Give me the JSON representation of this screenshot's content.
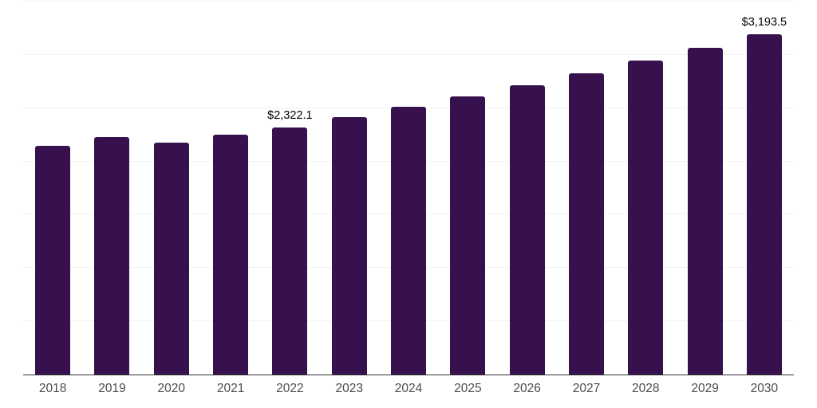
{
  "chart_data": {
    "type": "bar",
    "title": "",
    "xlabel": "",
    "ylabel": "",
    "categories": [
      "2018",
      "2019",
      "2020",
      "2021",
      "2022",
      "2023",
      "2024",
      "2025",
      "2026",
      "2027",
      "2028",
      "2029",
      "2030"
    ],
    "values": [
      2146,
      2232,
      2180,
      2248,
      2322.1,
      2412,
      2510,
      2612,
      2718,
      2828,
      2943,
      3065,
      3193.5
    ],
    "data_labels": {
      "2022": "$2,322.1",
      "2030": "$3,193.5"
    },
    "ylim": [
      0,
      3500
    ],
    "grid_step": 500,
    "grid_on": true,
    "legend": "none",
    "colors": {
      "bar": "#36114D",
      "gridline": "#F2F2F2",
      "axis_line": "#333333",
      "tick_label": "#4D4D4D",
      "data_label": "#000000",
      "background": "#FFFFFF"
    }
  }
}
